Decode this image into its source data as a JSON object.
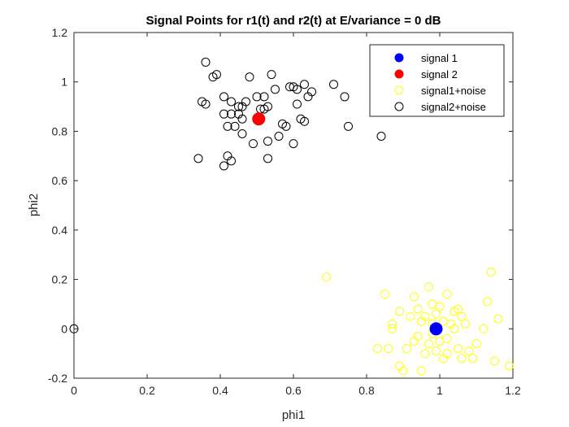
{
  "chart_data": {
    "type": "scatter",
    "title": "Signal Points for r1(t) and r2(t) at E/variance = 0 dB",
    "xlabel": "phi1",
    "ylabel": "phi2",
    "xlim": [
      0,
      1.2
    ],
    "ylim": [
      -0.2,
      1.2
    ],
    "xticks": [
      "0",
      "0.2",
      "0.4",
      "0.6",
      "0.8",
      "1",
      "1.2"
    ],
    "yticks": [
      "-0.2",
      "0",
      "0.2",
      "0.4",
      "0.6",
      "0.8",
      "1",
      "1.2"
    ],
    "grid": false,
    "legend_position": "top-right",
    "series": [
      {
        "name": "signal 1",
        "marker": "filled-circle",
        "color": "#0000ff",
        "points": [
          [
            0.99,
            0.0
          ]
        ]
      },
      {
        "name": "signal 2",
        "marker": "filled-circle",
        "color": "#ff0000",
        "points": [
          [
            0.505,
            0.85
          ]
        ]
      },
      {
        "name": "signal1+noise",
        "marker": "open-circle",
        "color": "#ffff00",
        "points": [
          [
            0.69,
            0.21
          ],
          [
            0.85,
            0.14
          ],
          [
            0.86,
            -0.08
          ],
          [
            0.87,
            0.02
          ],
          [
            0.87,
            0.0
          ],
          [
            0.83,
            -0.08
          ],
          [
            0.89,
            -0.15
          ],
          [
            0.89,
            0.07
          ],
          [
            0.9,
            -0.17
          ],
          [
            0.92,
            0.05
          ],
          [
            0.93,
            -0.05
          ],
          [
            0.94,
            0.08
          ],
          [
            0.94,
            -0.03
          ],
          [
            0.95,
            -0.17
          ],
          [
            0.95,
            0.03
          ],
          [
            0.96,
            0.05
          ],
          [
            0.97,
            -0.06
          ],
          [
            0.97,
            0.17
          ],
          [
            0.98,
            0.02
          ],
          [
            0.98,
            0.1
          ],
          [
            0.99,
            -0.09
          ],
          [
            0.99,
            0.06
          ],
          [
            1.0,
            0.09
          ],
          [
            1.0,
            -0.05
          ],
          [
            1.01,
            0.03
          ],
          [
            1.01,
            -0.12
          ],
          [
            1.02,
            0.14
          ],
          [
            1.02,
            -0.04
          ],
          [
            1.03,
            0.02
          ],
          [
            1.04,
            0.0
          ],
          [
            1.05,
            -0.08
          ],
          [
            1.05,
            0.08
          ],
          [
            1.06,
            -0.12
          ],
          [
            1.07,
            0.02
          ],
          [
            1.08,
            -0.09
          ],
          [
            1.09,
            -0.12
          ],
          [
            1.12,
            0.0
          ],
          [
            1.13,
            0.11
          ],
          [
            1.14,
            0.23
          ],
          [
            1.15,
            -0.13
          ],
          [
            1.16,
            0.04
          ],
          [
            1.19,
            -0.15
          ],
          [
            1.02,
            -0.1
          ],
          [
            0.96,
            -0.1
          ],
          [
            0.93,
            0.13
          ],
          [
            1.04,
            0.07
          ],
          [
            1.1,
            -0.06
          ],
          [
            0.98,
            -0.02
          ],
          [
            1.06,
            0.05
          ],
          [
            0.91,
            -0.08
          ]
        ]
      },
      {
        "name": "signal2+noise",
        "marker": "open-circle",
        "color": "#000000",
        "points": [
          [
            0.0,
            0.0
          ],
          [
            0.34,
            0.69
          ],
          [
            0.35,
            0.92
          ],
          [
            0.36,
            0.91
          ],
          [
            0.36,
            1.08
          ],
          [
            0.38,
            1.02
          ],
          [
            0.39,
            1.03
          ],
          [
            0.41,
            0.66
          ],
          [
            0.41,
            0.87
          ],
          [
            0.41,
            0.94
          ],
          [
            0.42,
            0.7
          ],
          [
            0.42,
            0.82
          ],
          [
            0.43,
            0.68
          ],
          [
            0.43,
            0.87
          ],
          [
            0.43,
            0.92
          ],
          [
            0.44,
            0.82
          ],
          [
            0.45,
            0.9
          ],
          [
            0.45,
            0.87
          ],
          [
            0.46,
            0.79
          ],
          [
            0.46,
            0.85
          ],
          [
            0.46,
            0.9
          ],
          [
            0.47,
            0.92
          ],
          [
            0.48,
            1.02
          ],
          [
            0.49,
            0.75
          ],
          [
            0.5,
            0.94
          ],
          [
            0.51,
            0.89
          ],
          [
            0.52,
            0.89
          ],
          [
            0.52,
            0.94
          ],
          [
            0.53,
            0.69
          ],
          [
            0.53,
            0.76
          ],
          [
            0.53,
            0.9
          ],
          [
            0.54,
            1.03
          ],
          [
            0.55,
            0.97
          ],
          [
            0.56,
            0.78
          ],
          [
            0.57,
            0.83
          ],
          [
            0.58,
            0.82
          ],
          [
            0.59,
            0.98
          ],
          [
            0.6,
            0.75
          ],
          [
            0.61,
            0.97
          ],
          [
            0.61,
            0.91
          ],
          [
            0.62,
            0.85
          ],
          [
            0.63,
            0.84
          ],
          [
            0.63,
            0.99
          ],
          [
            0.64,
            0.94
          ],
          [
            0.65,
            0.96
          ],
          [
            0.71,
            0.99
          ],
          [
            0.74,
            0.94
          ],
          [
            0.75,
            0.82
          ],
          [
            0.84,
            0.78
          ],
          [
            0.6,
            0.98
          ]
        ]
      }
    ]
  }
}
